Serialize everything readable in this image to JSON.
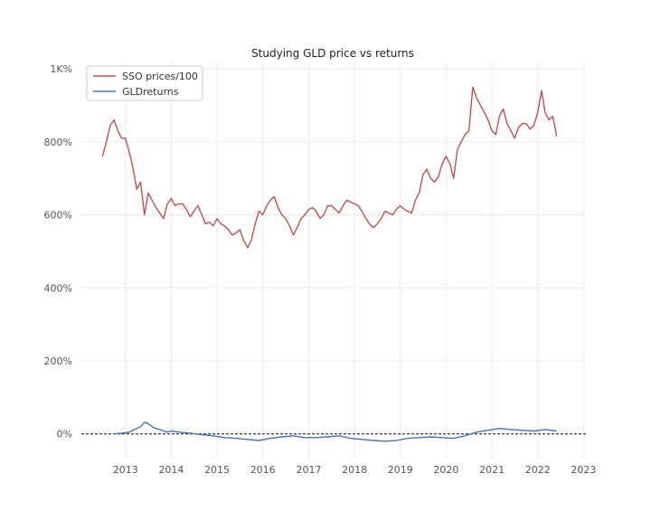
{
  "chart_data": {
    "type": "line",
    "title": "Studying GLD price vs returns",
    "xlabel": "",
    "ylabel": "",
    "x_type": "date",
    "xlim": [
      "2012-01-15",
      "2023-01-20"
    ],
    "ylim": [
      -70,
      1020
    ],
    "y_format": "percent",
    "y_ticks": [
      0,
      200,
      400,
      600,
      800,
      1000
    ],
    "y_tick_labels": [
      "0%",
      "200%",
      "400%",
      "600%",
      "800%",
      "1K%"
    ],
    "x_ticks": [
      "2013-01-01",
      "2014-01-01",
      "2015-01-01",
      "2016-01-01",
      "2017-01-01",
      "2018-01-01",
      "2019-01-01",
      "2020-01-01",
      "2021-01-01",
      "2022-01-01",
      "2023-01-01"
    ],
    "x_tick_labels": [
      "2013",
      "2014",
      "2015",
      "2016",
      "2017",
      "2018",
      "2019",
      "2020",
      "2021",
      "2022",
      "2023"
    ],
    "grid": true,
    "legend_position": "top-left",
    "reference_line": {
      "y": 0,
      "style": "dashed",
      "color": "#111111"
    },
    "series": [
      {
        "name": "SSO prices/100",
        "color": "#c44e52",
        "x": [
          "2012-07-01",
          "2012-08-01",
          "2012-09-01",
          "2012-10-01",
          "2012-11-01",
          "2012-12-01",
          "2013-01-01",
          "2013-02-01",
          "2013-03-01",
          "2013-04-01",
          "2013-05-01",
          "2013-06-01",
          "2013-07-01",
          "2013-08-01",
          "2013-09-01",
          "2013-10-01",
          "2013-11-01",
          "2013-12-01",
          "2014-01-01",
          "2014-02-01",
          "2014-03-01",
          "2014-04-01",
          "2014-05-01",
          "2014-06-01",
          "2014-07-01",
          "2014-08-01",
          "2014-09-01",
          "2014-10-01",
          "2014-11-01",
          "2014-12-01",
          "2015-01-01",
          "2015-02-01",
          "2015-03-01",
          "2015-04-01",
          "2015-05-01",
          "2015-06-01",
          "2015-07-01",
          "2015-08-01",
          "2015-09-01",
          "2015-10-01",
          "2015-11-01",
          "2015-12-01",
          "2016-01-01",
          "2016-02-01",
          "2016-03-01",
          "2016-04-01",
          "2016-05-01",
          "2016-06-01",
          "2016-07-01",
          "2016-08-01",
          "2016-09-01",
          "2016-10-01",
          "2016-11-01",
          "2016-12-01",
          "2017-01-01",
          "2017-02-01",
          "2017-03-01",
          "2017-04-01",
          "2017-05-01",
          "2017-06-01",
          "2017-07-01",
          "2017-08-01",
          "2017-09-01",
          "2017-10-01",
          "2017-11-01",
          "2017-12-01",
          "2018-01-01",
          "2018-02-01",
          "2018-03-01",
          "2018-04-01",
          "2018-05-01",
          "2018-06-01",
          "2018-07-01",
          "2018-08-01",
          "2018-09-01",
          "2018-10-01",
          "2018-11-01",
          "2018-12-01",
          "2019-01-01",
          "2019-02-01",
          "2019-03-01",
          "2019-04-01",
          "2019-05-01",
          "2019-06-01",
          "2019-07-01",
          "2019-08-01",
          "2019-09-01",
          "2019-10-01",
          "2019-11-01",
          "2019-12-01",
          "2020-01-01",
          "2020-02-01",
          "2020-03-01",
          "2020-04-01",
          "2020-05-01",
          "2020-06-01",
          "2020-07-01",
          "2020-08-01",
          "2020-09-01",
          "2020-10-01",
          "2020-11-01",
          "2020-12-01",
          "2021-01-01",
          "2021-02-01",
          "2021-03-01",
          "2021-04-01",
          "2021-05-01",
          "2021-06-01",
          "2021-07-01",
          "2021-08-01",
          "2021-09-01",
          "2021-10-01",
          "2021-11-01",
          "2021-12-01",
          "2022-01-01",
          "2022-02-01",
          "2022-03-01",
          "2022-04-01",
          "2022-05-01",
          "2022-06-01"
        ],
        "values": [
          760,
          800,
          845,
          860,
          830,
          810,
          810,
          770,
          730,
          670,
          690,
          600,
          660,
          640,
          620,
          605,
          590,
          630,
          645,
          625,
          630,
          630,
          615,
          595,
          610,
          625,
          600,
          575,
          580,
          570,
          590,
          575,
          570,
          560,
          545,
          550,
          560,
          530,
          510,
          530,
          575,
          610,
          600,
          625,
          640,
          650,
          620,
          600,
          590,
          570,
          545,
          565,
          590,
          600,
          615,
          620,
          610,
          590,
          600,
          625,
          625,
          615,
          605,
          625,
          640,
          635,
          630,
          625,
          610,
          590,
          575,
          565,
          575,
          590,
          610,
          605,
          600,
          615,
          625,
          615,
          610,
          605,
          640,
          660,
          710,
          725,
          700,
          690,
          705,
          740,
          760,
          740,
          700,
          780,
          800,
          820,
          830,
          950,
          920,
          900,
          880,
          860,
          830,
          820,
          870,
          890,
          850,
          830,
          810,
          840,
          850,
          850,
          835,
          845,
          880,
          940,
          880,
          860,
          870,
          815
        ]
      },
      {
        "name": "GLDreturns",
        "color": "#4c72b0",
        "x": [
          "2012-10-01",
          "2012-11-01",
          "2012-12-01",
          "2013-01-01",
          "2013-02-01",
          "2013-03-01",
          "2013-04-01",
          "2013-05-01",
          "2013-06-01",
          "2013-07-01",
          "2013-08-01",
          "2013-09-01",
          "2013-10-01",
          "2013-11-01",
          "2013-12-01",
          "2014-01-01",
          "2014-03-01",
          "2014-06-01",
          "2014-09-01",
          "2014-12-01",
          "2015-03-01",
          "2015-06-01",
          "2015-09-01",
          "2015-12-01",
          "2016-03-01",
          "2016-06-01",
          "2016-09-01",
          "2016-12-01",
          "2017-03-01",
          "2017-06-01",
          "2017-09-01",
          "2017-12-01",
          "2018-03-01",
          "2018-06-01",
          "2018-09-01",
          "2018-12-01",
          "2019-03-01",
          "2019-06-01",
          "2019-09-01",
          "2019-12-01",
          "2020-03-01",
          "2020-06-01",
          "2020-09-01",
          "2020-12-01",
          "2021-03-01",
          "2021-06-01",
          "2021-09-01",
          "2021-12-01",
          "2022-03-01",
          "2022-06-01"
        ],
        "values": [
          0,
          1,
          2,
          3,
          5,
          10,
          15,
          20,
          32,
          28,
          20,
          15,
          12,
          8,
          5,
          8,
          5,
          2,
          -2,
          -5,
          -10,
          -12,
          -15,
          -18,
          -12,
          -8,
          -5,
          -10,
          -10,
          -8,
          -5,
          -12,
          -15,
          -18,
          -20,
          -18,
          -12,
          -10,
          -8,
          -10,
          -12,
          -5,
          5,
          10,
          15,
          12,
          10,
          8,
          12,
          8
        ]
      }
    ]
  }
}
